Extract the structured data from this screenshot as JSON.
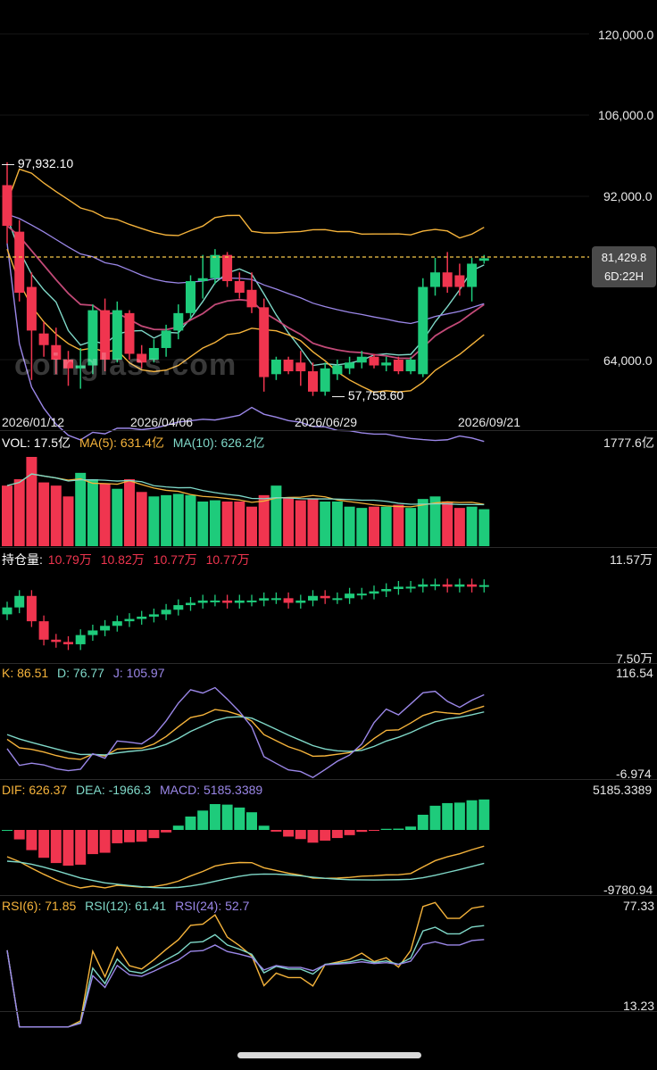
{
  "colors": {
    "up": "#1ecb7b",
    "down": "#f0354f",
    "ma_yellow": "#f5b33b",
    "ma_teal": "#7fd8c8",
    "ma_purple": "#9b87e8",
    "ma_magenta": "#c34a78",
    "price_line": "#f5c84a"
  },
  "watermark": "coinglass.com",
  "axis_price": [
    "120,000.0",
    "106,000.0",
    "92,000.0",
    "64,000.0"
  ],
  "price_tag": {
    "price": "81,429.8",
    "countdown": "6D:22H"
  },
  "high_marker": "97,932.10",
  "low_marker": "57,758.60",
  "dates": [
    "2026/01/12",
    "2026/04/06",
    "2026/06/29",
    "2026/09/21"
  ],
  "vol": {
    "label": "VOL: 17.5亿",
    "ma5": "MA(5): 631.4亿",
    "ma10": "MA(10): 626.2亿",
    "axis_top": "1777.6亿"
  },
  "oi": {
    "label": "持仓量:",
    "v1": "10.79万",
    "v2": "10.82万",
    "v3": "10.77万",
    "v4": "10.77万",
    "axis_top": "11.57万",
    "axis_bottom": "7.50万"
  },
  "kdj": {
    "k": "K: 86.51",
    "d": "D: 76.77",
    "j": "J: 105.97",
    "axis_top": "116.54",
    "axis_bottom": "-6.974"
  },
  "macd": {
    "dif": "DIF: 626.37",
    "dea": "DEA: -1966.3",
    "macd": "MACD: 5185.3389",
    "axis_top": "5185.3389",
    "axis_bottom": "-9780.94"
  },
  "rsi": {
    "r6": "RSI(6): 71.85",
    "r12": "RSI(12): 61.41",
    "r24": "RSI(24): 52.7",
    "axis_top": "77.33",
    "axis_bottom": "13.23"
  },
  "chart_data": {
    "type": "candlestick",
    "interval": "weekly",
    "price_scale": {
      "ref": [
        {
          "price": 120000,
          "note": "tick"
        },
        {
          "price": 64000,
          "note": "tick"
        }
      ]
    },
    "candles": [
      {
        "o": 94000,
        "h": 97932,
        "l": 84000,
        "c": 87000
      },
      {
        "o": 86000,
        "h": 88000,
        "l": 74000,
        "c": 75500
      },
      {
        "o": 76500,
        "h": 79000,
        "l": 60500,
        "c": 69000
      },
      {
        "o": 68500,
        "h": 70500,
        "l": 64500,
        "c": 66500
      },
      {
        "o": 66500,
        "h": 69500,
        "l": 61500,
        "c": 64000
      },
      {
        "o": 64000,
        "h": 65500,
        "l": 59500,
        "c": 62500
      },
      {
        "o": 62500,
        "h": 66000,
        "l": 59000,
        "c": 63000
      },
      {
        "o": 63000,
        "h": 73500,
        "l": 61500,
        "c": 72500
      },
      {
        "o": 72500,
        "h": 74500,
        "l": 62000,
        "c": 64000
      },
      {
        "o": 64000,
        "h": 74000,
        "l": 63500,
        "c": 72500
      },
      {
        "o": 72000,
        "h": 72500,
        "l": 64000,
        "c": 65000
      },
      {
        "o": 65000,
        "h": 66500,
        "l": 62500,
        "c": 63500
      },
      {
        "o": 64000,
        "h": 67500,
        "l": 63500,
        "c": 66000
      },
      {
        "o": 66000,
        "h": 70000,
        "l": 64500,
        "c": 69000
      },
      {
        "o": 69000,
        "h": 73500,
        "l": 67500,
        "c": 72000
      },
      {
        "o": 72000,
        "h": 78500,
        "l": 71000,
        "c": 77500
      },
      {
        "o": 77500,
        "h": 82000,
        "l": 74500,
        "c": 78000
      },
      {
        "o": 78000,
        "h": 83000,
        "l": 77000,
        "c": 82000
      },
      {
        "o": 82000,
        "h": 82500,
        "l": 76500,
        "c": 77500
      },
      {
        "o": 77500,
        "h": 79000,
        "l": 74500,
        "c": 75500
      },
      {
        "o": 76000,
        "h": 79000,
        "l": 72000,
        "c": 73000
      },
      {
        "o": 73000,
        "h": 74500,
        "l": 58500,
        "c": 61000
      },
      {
        "o": 61500,
        "h": 64500,
        "l": 60500,
        "c": 64000
      },
      {
        "o": 64000,
        "h": 64500,
        "l": 61500,
        "c": 62000
      },
      {
        "o": 63500,
        "h": 65500,
        "l": 59500,
        "c": 62000
      },
      {
        "o": 62000,
        "h": 63500,
        "l": 57758,
        "c": 58500
      },
      {
        "o": 58500,
        "h": 63500,
        "l": 57800,
        "c": 62500
      },
      {
        "o": 61500,
        "h": 64000,
        "l": 60500,
        "c": 63000
      },
      {
        "o": 62500,
        "h": 64500,
        "l": 61500,
        "c": 63500
      },
      {
        "o": 63500,
        "h": 65500,
        "l": 62500,
        "c": 64500
      },
      {
        "o": 64500,
        "h": 65000,
        "l": 62500,
        "c": 63000
      },
      {
        "o": 63000,
        "h": 64500,
        "l": 62000,
        "c": 63500
      },
      {
        "o": 64000,
        "h": 64500,
        "l": 61500,
        "c": 62000
      },
      {
        "o": 62000,
        "h": 64500,
        "l": 61500,
        "c": 64000
      },
      {
        "o": 61500,
        "h": 78000,
        "l": 61000,
        "c": 76500
      },
      {
        "o": 76500,
        "h": 81500,
        "l": 75000,
        "c": 79000
      },
      {
        "o": 79000,
        "h": 82500,
        "l": 75500,
        "c": 76500
      },
      {
        "o": 78500,
        "h": 80500,
        "l": 75000,
        "c": 76500
      },
      {
        "o": 76500,
        "h": 81500,
        "l": 74000,
        "c": 80500
      },
      {
        "o": 81000,
        "h": 82000,
        "l": 80500,
        "c": 81430
      }
    ],
    "volume": [
      95,
      105,
      140,
      100,
      95,
      78,
      115,
      105,
      98,
      90,
      105,
      85,
      78,
      80,
      82,
      80,
      70,
      72,
      70,
      70,
      62,
      80,
      95,
      75,
      72,
      75,
      70,
      70,
      62,
      60,
      62,
      62,
      65,
      60,
      74,
      78,
      70,
      60,
      62,
      58
    ],
    "open_interest": [
      9.8,
      10.3,
      9.2,
      8.4,
      8.3,
      8.2,
      8.6,
      8.8,
      9.0,
      9.2,
      9.3,
      9.4,
      9.5,
      9.7,
      9.9,
      10.0,
      10.1,
      10.1,
      10.0,
      10.1,
      10.1,
      10.2,
      10.2,
      10.0,
      10.1,
      10.3,
      10.2,
      10.2,
      10.4,
      10.4,
      10.5,
      10.6,
      10.7,
      10.7,
      10.8,
      10.8,
      10.7,
      10.8,
      10.7,
      10.77
    ],
    "indicators": [
      "MA",
      "VOL",
      "OI",
      "KDJ",
      "MACD",
      "RSI"
    ]
  }
}
